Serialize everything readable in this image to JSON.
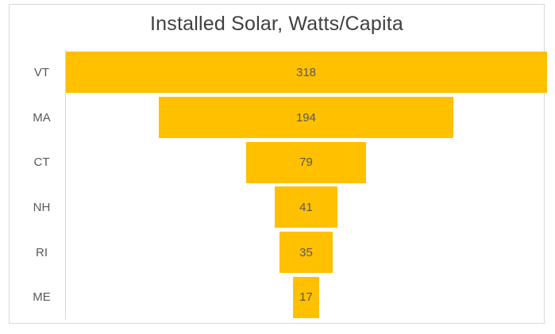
{
  "chart_data": {
    "type": "funnel",
    "title": "Installed Solar, Watts/Capita",
    "categories": [
      "VT",
      "MA",
      "CT",
      "NH",
      "RI",
      "ME"
    ],
    "values": [
      318,
      194,
      79,
      41,
      35,
      17
    ],
    "value_labels": [
      "318",
      "194",
      "79",
      "41",
      "35",
      "17"
    ],
    "orientation": "horizontal-centered",
    "legend": "none",
    "gridlines": "off",
    "bar_color": "#FFC000",
    "value_label_color": "#595959",
    "category_label_color": "#595959",
    "title_color": "#404040",
    "axis_line_color": "#D9D9D9",
    "frame_border_color": "#D9D9D9",
    "background_color": "#FFFFFF"
  }
}
